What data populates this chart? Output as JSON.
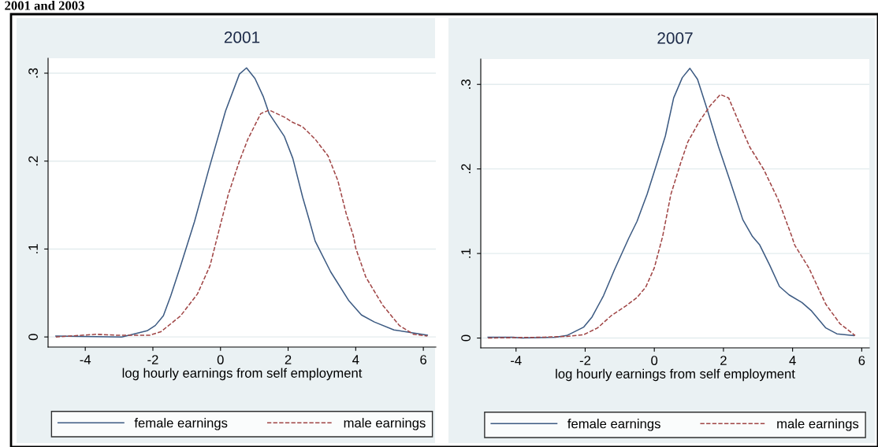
{
  "chart_data": [
    {
      "type": "line",
      "title": "2001",
      "xlabel": "log hourly earnings from self employment",
      "annotations": [
        "2001 and 2003"
      ],
      "xlim": [
        -5.1,
        6.37
      ],
      "ylim": [
        -0.0115,
        0.317
      ],
      "xticks": [
        -4,
        -2,
        0,
        2,
        4,
        6
      ],
      "yticks": [
        0,
        {
          "value": 0.1,
          "label": ".1"
        },
        {
          "value": 0.2,
          "label": ".2"
        },
        {
          "value": 0.3,
          "label": ".3"
        }
      ],
      "grid": "y",
      "legend": "bottom",
      "series": [
        {
          "name": "female earnings",
          "color": "#3c5a82",
          "line_style": "solid",
          "x": [
            -4.87,
            -2.92,
            -2.17,
            -1.93,
            -1.69,
            -1.47,
            -1.18,
            -0.77,
            -0.35,
            0.15,
            0.56,
            0.77,
            1.02,
            1.27,
            1.44,
            1.89,
            2.14,
            2.43,
            2.64,
            2.8,
            3.26,
            3.8,
            4.17,
            4.55,
            5.13,
            6.12
          ],
          "values": [
            0.001,
            0,
            0.007,
            0.013,
            0.024,
            0.047,
            0.081,
            0.131,
            0.19,
            0.257,
            0.299,
            0.306,
            0.294,
            0.273,
            0.254,
            0.228,
            0.203,
            0.159,
            0.131,
            0.109,
            0.074,
            0.041,
            0.025,
            0.017,
            0.008,
            0.002
          ]
        },
        {
          "name": "male earnings",
          "color": "#a04545",
          "line_style": "dashed",
          "x": [
            -4.87,
            -3.67,
            -3.09,
            -2.09,
            -1.76,
            -1.18,
            -0.68,
            -0.31,
            0.02,
            0.23,
            0.56,
            0.81,
            1.19,
            1.44,
            1.89,
            2.14,
            2.43,
            2.8,
            3.18,
            3.47,
            3.72,
            3.93,
            4.0,
            4.3,
            4.8,
            5.29,
            5.71,
            6.12
          ],
          "values": [
            0,
            0.003,
            0.002,
            0.002,
            0.006,
            0.024,
            0.049,
            0.081,
            0.131,
            0.162,
            0.2,
            0.225,
            0.254,
            0.258,
            0.25,
            0.244,
            0.239,
            0.225,
            0.206,
            0.178,
            0.14,
            0.115,
            0.101,
            0.068,
            0.036,
            0.013,
            0.003,
            0.001
          ]
        }
      ]
    },
    {
      "type": "line",
      "title": "2007",
      "xlabel": "log hourly earnings from self employment",
      "xlim": [
        -5.02,
        6.22
      ],
      "ylim": [
        -0.0116,
        0.33
      ],
      "xticks": [
        -4,
        -2,
        0,
        2,
        4,
        6
      ],
      "yticks": [
        0,
        {
          "value": 0.1,
          "label": ".1"
        },
        {
          "value": 0.2,
          "label": ".2"
        },
        {
          "value": 0.3,
          "label": ".3"
        }
      ],
      "grid": "y",
      "legend": "bottom",
      "series": [
        {
          "name": "female earnings",
          "color": "#3c5a82",
          "line_style": "solid",
          "x": [
            -4.81,
            -4.08,
            -3.84,
            -2.86,
            -2.53,
            -2.04,
            -1.8,
            -1.47,
            -1.15,
            -0.74,
            -0.5,
            -0.21,
            0.07,
            0.32,
            0.56,
            0.81,
            1.03,
            1.25,
            1.54,
            1.86,
            2.19,
            2.56,
            2.84,
            3.05,
            3.34,
            3.62,
            3.9,
            4.27,
            4.55,
            4.96,
            5.28,
            5.77
          ],
          "values": [
            0.001,
            0.001,
            0,
            0.001,
            0.003,
            0.013,
            0.025,
            0.05,
            0.081,
            0.118,
            0.138,
            0.17,
            0.206,
            0.239,
            0.284,
            0.308,
            0.319,
            0.306,
            0.269,
            0.226,
            0.186,
            0.14,
            0.12,
            0.11,
            0.086,
            0.061,
            0.051,
            0.042,
            0.032,
            0.012,
            0.005,
            0.003
          ]
        },
        {
          "name": "male earnings",
          "color": "#a04545",
          "line_style": "dashed",
          "x": [
            -4.81,
            -3.18,
            -2.53,
            -2.04,
            -1.64,
            -1.23,
            -0.82,
            -0.5,
            -0.25,
            0.0,
            0.24,
            0.48,
            0.77,
            0.97,
            1.3,
            1.62,
            1.91,
            2.15,
            2.48,
            2.76,
            3.17,
            3.58,
            3.98,
            4.06,
            4.47,
            4.96,
            5.37,
            5.81
          ],
          "values": [
            0,
            0.001,
            0.002,
            0.004,
            0.012,
            0.027,
            0.038,
            0.048,
            0.06,
            0.083,
            0.12,
            0.17,
            0.208,
            0.232,
            0.256,
            0.275,
            0.288,
            0.284,
            0.252,
            0.226,
            0.199,
            0.164,
            0.12,
            0.11,
            0.083,
            0.04,
            0.017,
            0.003
          ]
        }
      ]
    }
  ]
}
